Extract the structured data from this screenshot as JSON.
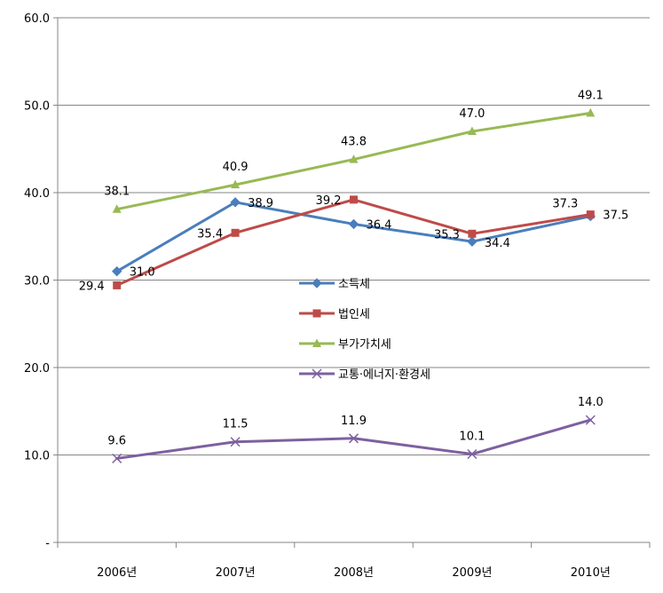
{
  "chart_data": {
    "type": "line",
    "title": "",
    "xlabel": "",
    "ylabel": "",
    "categories": [
      "2006년",
      "2007년",
      "2008년",
      "2009년",
      "2010년"
    ],
    "ylim": [
      0,
      60
    ],
    "yticks": [
      0,
      10,
      20,
      30,
      40,
      50,
      60
    ],
    "ytick_labels": [
      "-",
      "10.0",
      "20.0",
      "30.0",
      "40.0",
      "50.0",
      "60.0"
    ],
    "grid": true,
    "legend_position": "center",
    "series": [
      {
        "name": "소득세",
        "values": [
          31.0,
          38.9,
          36.4,
          34.4,
          37.3
        ],
        "labels": [
          "31.0",
          "38.9",
          "36.4",
          "34.4",
          "37.3"
        ],
        "color": "#4a7ebb",
        "marker": "diamond"
      },
      {
        "name": "법인세",
        "values": [
          29.4,
          35.4,
          39.2,
          35.3,
          37.5
        ],
        "labels": [
          "29.4",
          "35.4",
          "39.2",
          "35.3",
          "37.5"
        ],
        "color": "#be4b48",
        "marker": "square"
      },
      {
        "name": "부가가치세",
        "values": [
          38.1,
          40.9,
          43.8,
          47.0,
          49.1
        ],
        "labels": [
          "38.1",
          "40.9",
          "43.8",
          "47.0",
          "49.1"
        ],
        "color": "#98b954",
        "marker": "triangle"
      },
      {
        "name": "교통·에너지·환경세",
        "values": [
          9.6,
          11.5,
          11.9,
          10.1,
          14.0
        ],
        "labels": [
          "9.6",
          "11.5",
          "11.9",
          "10.1",
          "14.0"
        ],
        "color": "#7d60a0",
        "marker": "x"
      }
    ]
  }
}
